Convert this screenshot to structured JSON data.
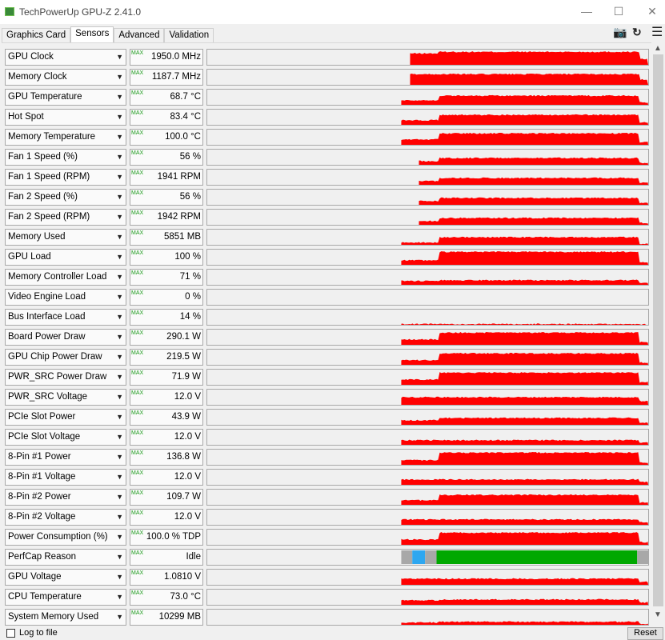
{
  "window": {
    "title": "TechPowerUp GPU-Z 2.41.0",
    "minimize": "—",
    "maximize": "☐",
    "close": "✕"
  },
  "tabs": [
    {
      "label": "Graphics Card"
    },
    {
      "label": "Sensors",
      "active": true
    },
    {
      "label": "Advanced"
    },
    {
      "label": "Validation"
    }
  ],
  "toolbar": {
    "camera_icon": "camera-icon",
    "refresh_icon": "refresh-icon",
    "menu_icon": "hamburger-menu-icon"
  },
  "max_badge": "MAX",
  "colors": {
    "graph": "#ff0000",
    "perfcap_idle": "#a8a8a8",
    "perfcap_vrel": "#2ea7f0",
    "perfcap_pwr": "#00a800"
  },
  "sensors": [
    {
      "name": "GPU Clock",
      "value": "1950.0 MHz",
      "trace": [
        0.46,
        0.75,
        0.85
      ]
    },
    {
      "name": "Memory Clock",
      "value": "1187.7 MHz",
      "trace": [
        0.46,
        0.7,
        0.7
      ]
    },
    {
      "name": "GPU Temperature",
      "value": "68.7 °C",
      "trace": [
        0.44,
        0.3,
        0.6
      ]
    },
    {
      "name": "Hot Spot",
      "value": "83.4 °C",
      "trace": [
        0.44,
        0.3,
        0.65
      ]
    },
    {
      "name": "Memory Temperature",
      "value": "100.0 °C",
      "trace": [
        0.44,
        0.35,
        0.75
      ]
    },
    {
      "name": "Fan 1 Speed (%)",
      "value": "56 %",
      "trace": [
        0.48,
        0.25,
        0.45
      ]
    },
    {
      "name": "Fan 1 Speed (RPM)",
      "value": "1941 RPM",
      "trace": [
        0.48,
        0.25,
        0.45
      ]
    },
    {
      "name": "Fan 2 Speed (%)",
      "value": "56 %",
      "trace": [
        0.48,
        0.25,
        0.45
      ]
    },
    {
      "name": "Fan 2 Speed (RPM)",
      "value": "1942 RPM",
      "trace": [
        0.48,
        0.25,
        0.45
      ]
    },
    {
      "name": "Memory Used",
      "value": "5851 MB",
      "trace": [
        0.44,
        0.15,
        0.5
      ]
    },
    {
      "name": "GPU Load",
      "value": "100 %",
      "trace": [
        0.44,
        0.3,
        0.85
      ]
    },
    {
      "name": "Memory Controller Load",
      "value": "71 %",
      "trace": [
        0.44,
        0.25,
        0.3
      ]
    },
    {
      "name": "Video Engine Load",
      "value": "0 %",
      "trace": [
        0.44,
        0,
        0
      ]
    },
    {
      "name": "Bus Interface Load",
      "value": "14 %",
      "trace": [
        0.44,
        0.05,
        0.05
      ]
    },
    {
      "name": "Board Power Draw",
      "value": "290.1 W",
      "trace": [
        0.44,
        0.35,
        0.8
      ]
    },
    {
      "name": "GPU Chip Power Draw",
      "value": "219.5 W",
      "trace": [
        0.44,
        0.3,
        0.75
      ]
    },
    {
      "name": "PWR_SRC Power Draw",
      "value": "71.9 W",
      "trace": [
        0.44,
        0.35,
        0.8
      ]
    },
    {
      "name": "PWR_SRC Voltage",
      "value": "12.0 V",
      "trace": [
        0.44,
        0.5,
        0.5
      ]
    },
    {
      "name": "PCIe Slot Power",
      "value": "43.9 W",
      "trace": [
        0.44,
        0.3,
        0.45
      ]
    },
    {
      "name": "PCIe Slot Voltage",
      "value": "12.0 V",
      "trace": [
        0.44,
        0.3,
        0.3
      ]
    },
    {
      "name": "8-Pin #1 Power",
      "value": "136.8 W",
      "trace": [
        0.44,
        0.3,
        0.8
      ]
    },
    {
      "name": "8-Pin #1 Voltage",
      "value": "12.0 V",
      "trace": [
        0.44,
        0.35,
        0.35
      ]
    },
    {
      "name": "8-Pin #2 Power",
      "value": "109.7 W",
      "trace": [
        0.44,
        0.3,
        0.65
      ]
    },
    {
      "name": "8-Pin #2 Voltage",
      "value": "12.0 V",
      "trace": [
        0.44,
        0.35,
        0.35
      ]
    },
    {
      "name": "Power Consumption (%)",
      "value": "100.0 % TDP",
      "trace": [
        0.44,
        0.35,
        0.8
      ]
    },
    {
      "name": "PerfCap Reason",
      "value": "Idle",
      "perfcap": true
    },
    {
      "name": "GPU Voltage",
      "value": "1.0810 V",
      "trace": [
        0.44,
        0.4,
        0.4
      ]
    },
    {
      "name": "CPU Temperature",
      "value": "73.0 °C",
      "trace": [
        0.44,
        0.3,
        0.35
      ]
    },
    {
      "name": "System Memory Used",
      "value": "10299 MB",
      "trace": [
        0.44,
        0.15,
        0.2
      ]
    }
  ],
  "footer": {
    "log_label": "Log to file",
    "reset_label": "Reset"
  }
}
